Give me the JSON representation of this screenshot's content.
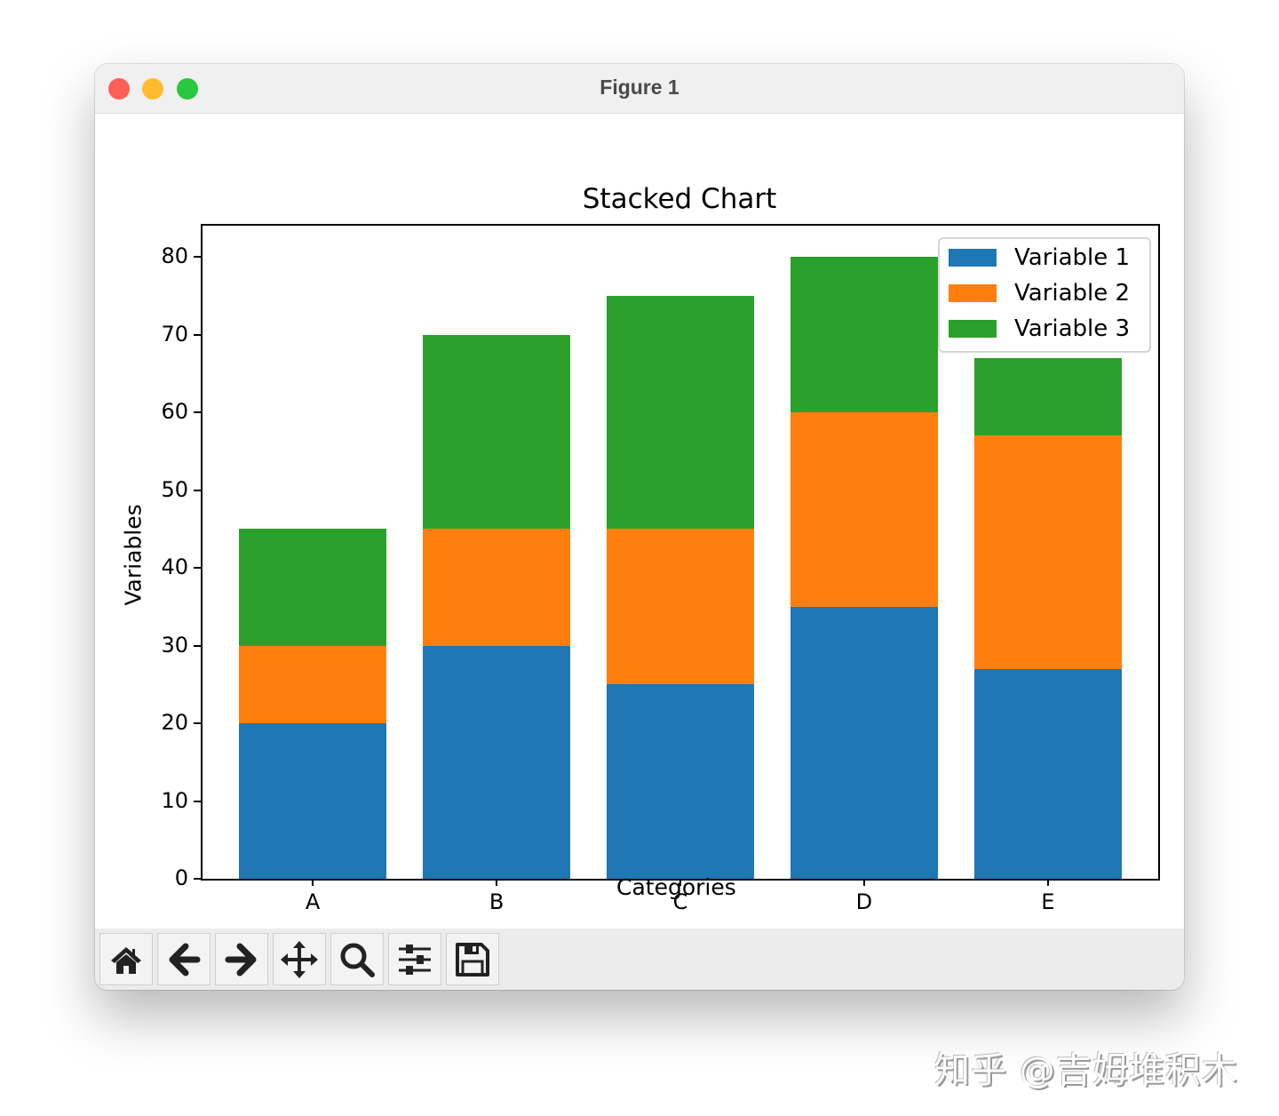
{
  "window": {
    "title": "Figure 1"
  },
  "chart_data": {
    "type": "bar",
    "stacked": true,
    "title": "Stacked Chart",
    "xlabel": "Categories",
    "ylabel": "Variables",
    "categories": [
      "A",
      "B",
      "C",
      "D",
      "E"
    ],
    "series": [
      {
        "name": "Variable 1",
        "color": "#1f77b4",
        "values": [
          20,
          30,
          25,
          35,
          27
        ]
      },
      {
        "name": "Variable 2",
        "color": "#ff7f0e",
        "values": [
          10,
          15,
          20,
          25,
          30
        ]
      },
      {
        "name": "Variable 3",
        "color": "#2ca02c",
        "values": [
          15,
          25,
          30,
          20,
          10
        ]
      }
    ],
    "yticks": [
      0,
      10,
      20,
      30,
      40,
      50,
      60,
      70,
      80
    ],
    "ylim": [
      0,
      84
    ],
    "grid": false,
    "legend_position": "upper right"
  },
  "toolbar": {
    "buttons": [
      {
        "name": "home",
        "icon": "home-icon"
      },
      {
        "name": "back",
        "icon": "arrow-left-icon"
      },
      {
        "name": "forward",
        "icon": "arrow-right-icon"
      },
      {
        "name": "pan",
        "icon": "move-icon"
      },
      {
        "name": "zoom",
        "icon": "magnifier-icon"
      },
      {
        "name": "configure-subplots",
        "icon": "sliders-icon"
      },
      {
        "name": "save",
        "icon": "floppy-disk-icon"
      }
    ]
  },
  "watermark": {
    "text": "知乎 @吉姆堆积木"
  }
}
